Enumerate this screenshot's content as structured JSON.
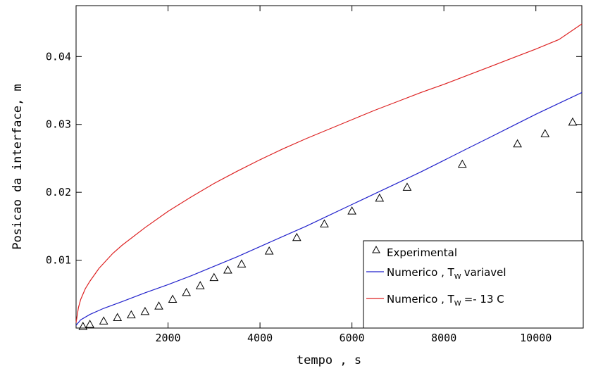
{
  "chart_data": {
    "type": "line",
    "xlabel": "tempo , s",
    "ylabel": "Posicao da interface, m",
    "xlim": [
      0,
      11000
    ],
    "ylim": [
      0,
      0.0475
    ],
    "x_ticks": [
      2000,
      4000,
      6000,
      8000,
      10000
    ],
    "x_tick_labels": [
      "2000",
      "4000",
      "6000",
      "8000",
      "10000"
    ],
    "y_ticks": [
      0.01,
      0.02,
      0.03,
      0.04
    ],
    "y_tick_labels": [
      "0.01",
      "0.02",
      "0.03",
      "0.04"
    ],
    "legend_position": "bottom-right",
    "series": [
      {
        "name": "Experimental",
        "kind": "scatter",
        "marker": "triangle-open",
        "color": "#000000",
        "x": [
          150,
          300,
          600,
          900,
          1200,
          1500,
          1800,
          2100,
          2400,
          2700,
          3000,
          3300,
          3600,
          4200,
          4800,
          5400,
          6000,
          6600,
          7200,
          8400,
          9600,
          10200,
          10800
        ],
        "y": [
          0.0002,
          0.0005,
          0.001,
          0.0015,
          0.0019,
          0.0024,
          0.0032,
          0.0042,
          0.0052,
          0.0062,
          0.0074,
          0.0085,
          0.0094,
          0.0113,
          0.0133,
          0.0153,
          0.0172,
          0.0191,
          0.0207,
          0.0241,
          0.0271,
          0.0286,
          0.0303
        ]
      },
      {
        "name": "Numerico , Tw variavel",
        "label_main": "Numerico , T",
        "label_sub": "W",
        "label_tail": "variavel",
        "kind": "line",
        "color": "#2222cc",
        "x": [
          0,
          100,
          300,
          600,
          1000,
          1500,
          2000,
          2500,
          3000,
          3500,
          4000,
          4500,
          5000,
          5500,
          6000,
          6500,
          7000,
          7500,
          8000,
          8500,
          9000,
          9500,
          10000,
          10500,
          11000
        ],
        "y": [
          0.0004,
          0.0012,
          0.002,
          0.0029,
          0.0039,
          0.0052,
          0.0064,
          0.0077,
          0.0091,
          0.0105,
          0.012,
          0.0135,
          0.015,
          0.0166,
          0.0182,
          0.0198,
          0.0214,
          0.023,
          0.0247,
          0.0264,
          0.0281,
          0.0298,
          0.0315,
          0.0331,
          0.0347
        ]
      },
      {
        "name": "Numerico , Tw =- 13 C",
        "label_main": "Numerico , T",
        "label_sub": "W",
        "label_tail": "=- 13  C",
        "kind": "line",
        "color": "#dd2222",
        "x": [
          0,
          50,
          100,
          200,
          300,
          500,
          800,
          1000,
          1500,
          2000,
          2500,
          3000,
          3500,
          4000,
          4500,
          5000,
          5500,
          6000,
          6500,
          7000,
          7500,
          8000,
          8500,
          9000,
          9500,
          10000,
          10500,
          11000
        ],
        "y": [
          0.0008,
          0.003,
          0.0042,
          0.0058,
          0.0069,
          0.0088,
          0.011,
          0.0122,
          0.0148,
          0.0172,
          0.0193,
          0.0213,
          0.0231,
          0.0248,
          0.0264,
          0.0279,
          0.0293,
          0.0307,
          0.0321,
          0.0334,
          0.0347,
          0.0359,
          0.0372,
          0.0385,
          0.0398,
          0.0411,
          0.0425,
          0.0448
        ]
      }
    ]
  }
}
